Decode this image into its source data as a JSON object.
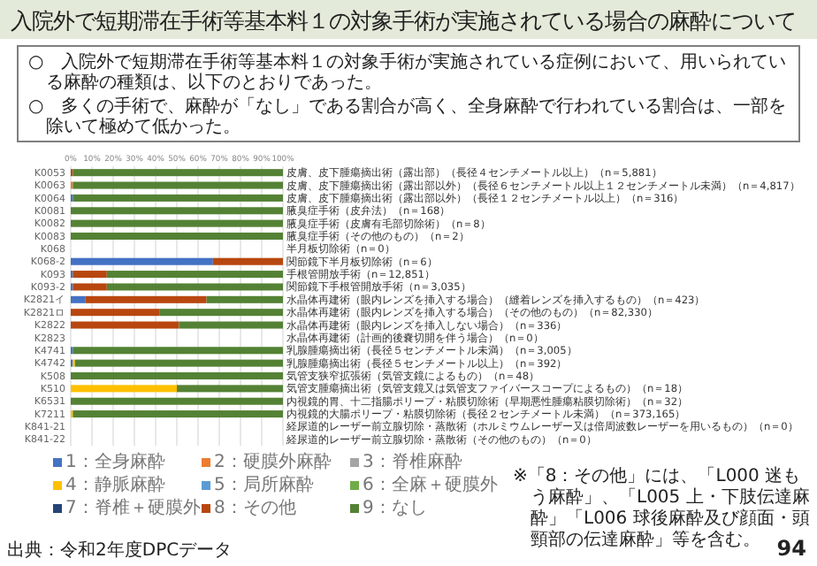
{
  "chart_data": {
    "type": "bar",
    "orientation": "horizontal",
    "stacked": true,
    "title": "入院外で短期滞在手術等基本料１の対象手術が実施されている場合の麻酔について",
    "categories": [
      "K0053",
      "K0063",
      "K0064",
      "K0081",
      "K0082",
      "K0083",
      "K068",
      "K068-2",
      "K093",
      "K093-2",
      "K2821イ",
      "K2821ロ",
      "K2822",
      "K2823",
      "K4741",
      "K4742",
      "K508",
      "K510",
      "K6531",
      "K7211",
      "K841-21",
      "K841-22"
    ],
    "series": [
      {
        "name": "1：全身麻酔",
        "color": "#4472c4",
        "values": [
          0,
          0,
          1,
          0,
          0,
          0,
          null,
          67,
          1,
          1,
          7,
          0,
          0,
          null,
          1,
          1,
          0,
          0,
          0,
          0,
          null,
          null
        ]
      },
      {
        "name": "2：硬膜外麻酔",
        "color": "#ed7d31",
        "values": [
          0,
          1,
          0,
          0,
          0,
          0,
          null,
          0,
          0,
          0,
          0,
          0,
          0,
          null,
          0,
          0,
          0,
          0,
          0,
          0,
          null,
          null
        ]
      },
      {
        "name": "3：脊椎麻酔",
        "color": "#a5a5a5",
        "values": [
          0,
          0,
          0,
          0,
          0,
          0,
          null,
          0,
          0,
          0,
          0,
          0,
          0,
          null,
          0,
          0,
          0,
          0,
          0,
          0,
          null,
          null
        ]
      },
      {
        "name": "4：静脈麻酔",
        "color": "#ffc000",
        "values": [
          0,
          0,
          0,
          0,
          0,
          0,
          null,
          0,
          0,
          0,
          0,
          0,
          0,
          null,
          0,
          1,
          0,
          50,
          0,
          1,
          null,
          null
        ]
      },
      {
        "name": "5：局所麻酔",
        "color": "#5b9bd5",
        "values": [
          0,
          0,
          0,
          0,
          0,
          0,
          null,
          0,
          0,
          0,
          0,
          0,
          0,
          null,
          0,
          0,
          0,
          0,
          0,
          0,
          null,
          null
        ]
      },
      {
        "name": "6：全麻＋硬膜外",
        "color": "#70ad47",
        "values": [
          0,
          0,
          0,
          0,
          0,
          0,
          null,
          0,
          0,
          0,
          0,
          0,
          0,
          null,
          0,
          0,
          0,
          0,
          0,
          0,
          null,
          null
        ]
      },
      {
        "name": "7：脊椎＋硬膜外",
        "color": "#264478",
        "values": [
          0,
          0,
          0,
          0,
          0,
          0,
          null,
          0,
          0,
          0,
          0,
          0,
          0,
          null,
          0,
          0,
          0,
          0,
          0,
          0,
          null,
          null
        ]
      },
      {
        "name": "8：その他",
        "color": "#b8470f",
        "values": [
          1,
          0,
          0,
          0,
          0,
          0,
          null,
          33,
          16,
          16,
          57,
          42,
          51,
          null,
          0,
          0,
          0,
          0,
          0,
          0,
          null,
          null
        ]
      },
      {
        "name": "9：なし",
        "color": "#548235",
        "values": [
          99,
          99,
          99,
          100,
          100,
          100,
          null,
          0,
          83,
          83,
          36,
          58,
          49,
          null,
          99,
          98,
          100,
          50,
          100,
          99,
          null,
          null
        ]
      }
    ],
    "xlim": [
      0,
      100
    ],
    "xticks": [
      {
        "value": 0,
        "label": "0%"
      },
      {
        "value": 10,
        "label": "10%"
      },
      {
        "value": 20,
        "label": "20%"
      },
      {
        "value": 30,
        "label": "30%"
      },
      {
        "value": 40,
        "label": "40%"
      },
      {
        "value": 50,
        "label": "50%"
      },
      {
        "value": 60,
        "label": "60%"
      },
      {
        "value": 70,
        "label": "70%"
      },
      {
        "value": 80,
        "label": "80%"
      },
      {
        "value": 90,
        "label": "90%"
      },
      {
        "value": 100,
        "label": "100%"
      }
    ],
    "grid": "x",
    "legend": "bottom",
    "annotations": [
      "○　入院外で短期滞在手術等基本料１の対象手術が実施されている症例において、用いられている麻酔の種類は、以下のとおりであった。",
      "○　多くの手術で、麻酔が「なし」である割合が高く、全身麻酔で行われている割合は、一部を除いて極めて低かった。",
      "皮膚、皮下腫瘍摘出術（露出部）（長径４センチメートル以上）（n＝5,881）",
      "皮膚、皮下腫瘍摘出術（露出部以外）（長径６センチメートル以上１２センチメートル未満）（n＝4,817）",
      "皮膚、皮下腫瘍摘出術（露出部以外）（長径１２センチメートル以上）（n＝316）",
      "腋臭症手術（皮弁法）（n＝168）",
      "腋臭症手術（皮膚有毛部切除術）（n＝8）",
      "腋臭症手術（その他のもの）（n＝2）",
      "半月板切除術（n＝0）",
      "関節鏡下半月板切除術（n＝6）",
      "手根管開放手術（n＝12,851）",
      "関節鏡下手根管開放手術（n＝3,035）",
      "水晶体再建術（眼内レンズを挿入する場合）（縫着レンズを挿入するもの）（n＝423）",
      "水晶体再建術（眼内レンズを挿入する場合）（その他のもの）（n＝82,330）",
      "水晶体再建術（眼内レンズを挿入しない場合）（n＝336）",
      "水晶体再建術（計画的後嚢切開を伴う場合）（n＝0）",
      "乳腺腫瘍摘出術（長径５センチメートル未満）（n＝3,005）",
      "乳腺腫瘍摘出術（長径５センチメートル以上）（n＝392）",
      "気管支狭窄拡張術（気管支鏡によるもの）（n＝48）",
      "気管支腫瘍摘出術（気管支鏡又は気管支ファイバースコープによるもの）（n＝18）",
      "内視鏡的胃、十二指腸ポリープ・粘膜切除術（早期悪性腫瘍粘膜切除術）（n＝32）",
      "内視鏡的大腸ポリープ・粘膜切除術（長径２センチメートル未満）（n＝373,165）",
      "経尿道的レーザー前立腺切除・蒸散術（ホルミウムレーザー又は倍周波数レーザーを用いるもの）（n＝0）",
      "経尿道的レーザー前立腺切除・蒸散術（その他のもの）（n＝0）",
      "※「8：その他」には、「L000 迷もう麻酔」、「L005 上・下肢伝達麻酔」「L006 球後麻酔及び顔面・頭頸部の伝達麻酔」等を含む。",
      "出典：令和2年度DPCデータ",
      "94"
    ]
  }
}
